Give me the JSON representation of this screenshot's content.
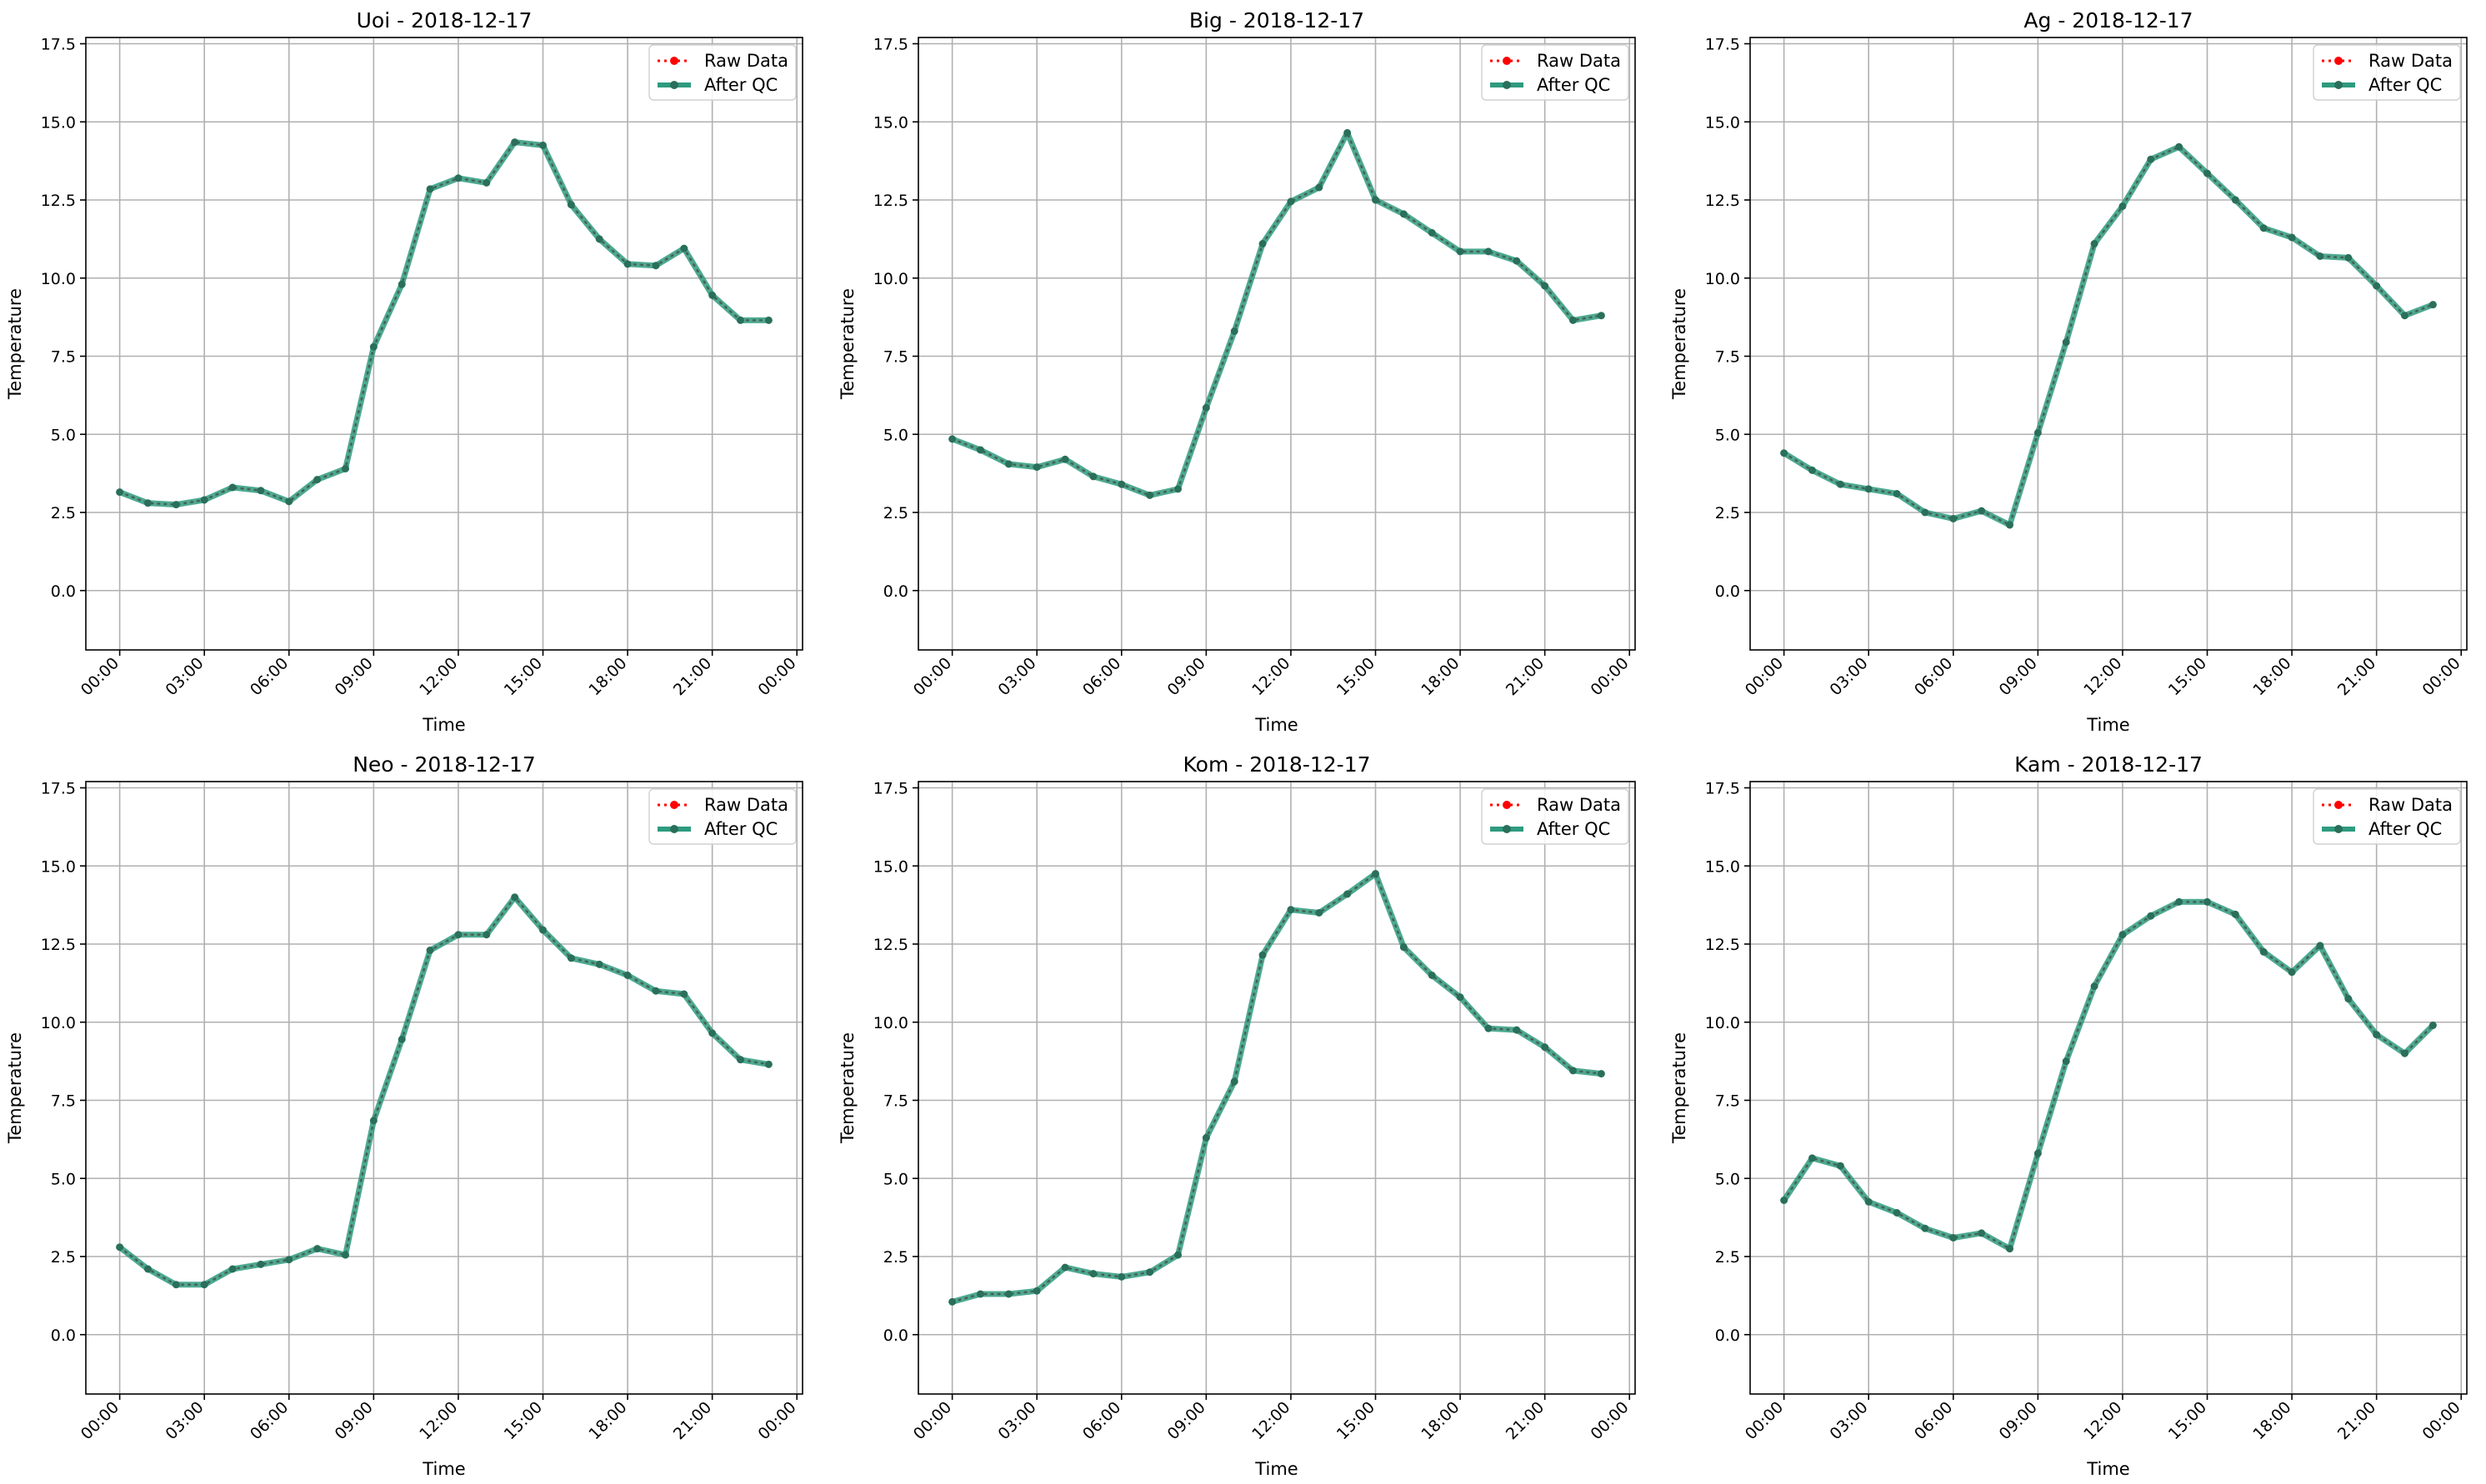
{
  "figure": {
    "xlabel": "Time",
    "ylabel": "Temperature",
    "legend": [
      "Raw Data",
      "After QC"
    ]
  },
  "colors": {
    "raw": "#ff0000",
    "after_qc": "#2e9b7f",
    "grid": "#b0b0b0",
    "axis": "#000000"
  },
  "chart_data": [
    {
      "type": "line",
      "title": "Uoi - 2018-12-17",
      "xlabel": "Time",
      "ylabel": "Temperature",
      "xlim": [
        "00:00",
        "00:00 (next day)"
      ],
      "ylim": [
        -1.9,
        17.7
      ],
      "yticks": [
        "0.0",
        "2.5",
        "5.0",
        "7.5",
        "10.0",
        "12.5",
        "15.0",
        "17.5"
      ],
      "xticks": [
        "00:00",
        "03:00",
        "06:00",
        "09:00",
        "12:00",
        "15:00",
        "18:00",
        "21:00",
        "00:00"
      ],
      "grid": true,
      "legend_position": "top-right",
      "x": [
        "00:00",
        "01:00",
        "02:00",
        "03:00",
        "04:00",
        "05:00",
        "06:00",
        "07:00",
        "08:00",
        "09:00",
        "10:00",
        "11:00",
        "12:00",
        "13:00",
        "14:00",
        "15:00",
        "16:00",
        "17:00",
        "18:00",
        "19:00",
        "20:00",
        "21:00",
        "22:00",
        "23:00"
      ],
      "series": [
        {
          "name": "Raw Data",
          "values": [
            3.15,
            2.8,
            2.75,
            2.9,
            3.3,
            3.2,
            2.85,
            3.55,
            3.9,
            7.8,
            9.8,
            12.85,
            13.2,
            13.05,
            14.35,
            14.25,
            12.35,
            11.25,
            10.45,
            10.4,
            10.95,
            9.45,
            8.65,
            8.65
          ]
        },
        {
          "name": "After QC",
          "values": [
            3.15,
            2.8,
            2.75,
            2.9,
            3.3,
            3.2,
            2.85,
            3.55,
            3.9,
            7.8,
            9.8,
            12.85,
            13.2,
            13.05,
            14.35,
            14.25,
            12.35,
            11.25,
            10.45,
            10.4,
            10.95,
            9.45,
            8.65,
            8.65
          ]
        }
      ]
    },
    {
      "type": "line",
      "title": "Big - 2018-12-17",
      "xlabel": "Time",
      "ylabel": "Temperature",
      "xlim": [
        "00:00",
        "00:00 (next day)"
      ],
      "ylim": [
        -1.9,
        17.7
      ],
      "yticks": [
        "0.0",
        "2.5",
        "5.0",
        "7.5",
        "10.0",
        "12.5",
        "15.0",
        "17.5"
      ],
      "xticks": [
        "00:00",
        "03:00",
        "06:00",
        "09:00",
        "12:00",
        "15:00",
        "18:00",
        "21:00",
        "00:00"
      ],
      "grid": true,
      "legend_position": "top-right",
      "x": [
        "00:00",
        "01:00",
        "02:00",
        "03:00",
        "04:00",
        "05:00",
        "06:00",
        "07:00",
        "08:00",
        "09:00",
        "10:00",
        "11:00",
        "12:00",
        "13:00",
        "14:00",
        "15:00",
        "16:00",
        "17:00",
        "18:00",
        "19:00",
        "20:00",
        "21:00",
        "22:00",
        "23:00"
      ],
      "series": [
        {
          "name": "Raw Data",
          "values": [
            4.85,
            4.5,
            4.05,
            3.95,
            4.2,
            3.65,
            3.4,
            3.05,
            3.25,
            5.85,
            8.3,
            11.1,
            12.45,
            12.9,
            14.65,
            12.5,
            12.05,
            11.45,
            10.85,
            10.85,
            10.55,
            9.75,
            8.65,
            8.8
          ]
        },
        {
          "name": "After QC",
          "values": [
            4.85,
            4.5,
            4.05,
            3.95,
            4.2,
            3.65,
            3.4,
            3.05,
            3.25,
            5.85,
            8.3,
            11.1,
            12.45,
            12.9,
            14.65,
            12.5,
            12.05,
            11.45,
            10.85,
            10.85,
            10.55,
            9.75,
            8.65,
            8.8
          ]
        }
      ]
    },
    {
      "type": "line",
      "title": "Ag - 2018-12-17",
      "xlabel": "Time",
      "ylabel": "Temperature",
      "xlim": [
        "00:00",
        "00:00 (next day)"
      ],
      "ylim": [
        -1.9,
        17.7
      ],
      "yticks": [
        "0.0",
        "2.5",
        "5.0",
        "7.5",
        "10.0",
        "12.5",
        "15.0",
        "17.5"
      ],
      "xticks": [
        "00:00",
        "03:00",
        "06:00",
        "09:00",
        "12:00",
        "15:00",
        "18:00",
        "21:00",
        "00:00"
      ],
      "grid": true,
      "legend_position": "top-right",
      "x": [
        "00:00",
        "01:00",
        "02:00",
        "03:00",
        "04:00",
        "05:00",
        "06:00",
        "07:00",
        "08:00",
        "09:00",
        "10:00",
        "11:00",
        "12:00",
        "13:00",
        "14:00",
        "15:00",
        "16:00",
        "17:00",
        "18:00",
        "19:00",
        "20:00",
        "21:00",
        "22:00",
        "23:00"
      ],
      "series": [
        {
          "name": "Raw Data",
          "values": [
            4.4,
            3.85,
            3.4,
            3.25,
            3.1,
            2.5,
            2.3,
            2.55,
            2.1,
            5.05,
            7.95,
            11.1,
            12.3,
            13.8,
            14.2,
            13.35,
            12.5,
            11.6,
            11.3,
            10.7,
            10.65,
            9.75,
            8.8,
            9.15
          ]
        },
        {
          "name": "After QC",
          "values": [
            4.4,
            3.85,
            3.4,
            3.25,
            3.1,
            2.5,
            2.3,
            2.55,
            2.1,
            5.05,
            7.95,
            11.1,
            12.3,
            13.8,
            14.2,
            13.35,
            12.5,
            11.6,
            11.3,
            10.7,
            10.65,
            9.75,
            8.8,
            9.15
          ]
        }
      ]
    },
    {
      "type": "line",
      "title": "Neo - 2018-12-17",
      "xlabel": "Time",
      "ylabel": "Temperature",
      "xlim": [
        "00:00",
        "00:00 (next day)"
      ],
      "ylim": [
        -1.9,
        17.7
      ],
      "yticks": [
        "0.0",
        "2.5",
        "5.0",
        "7.5",
        "10.0",
        "12.5",
        "15.0",
        "17.5"
      ],
      "xticks": [
        "00:00",
        "03:00",
        "06:00",
        "09:00",
        "12:00",
        "15:00",
        "18:00",
        "21:00",
        "00:00"
      ],
      "grid": true,
      "legend_position": "top-right",
      "x": [
        "00:00",
        "01:00",
        "02:00",
        "03:00",
        "04:00",
        "05:00",
        "06:00",
        "07:00",
        "08:00",
        "09:00",
        "10:00",
        "11:00",
        "12:00",
        "13:00",
        "14:00",
        "15:00",
        "16:00",
        "17:00",
        "18:00",
        "19:00",
        "20:00",
        "21:00",
        "22:00",
        "23:00"
      ],
      "series": [
        {
          "name": "Raw Data",
          "values": [
            2.8,
            2.1,
            1.6,
            1.6,
            2.1,
            2.25,
            2.4,
            2.75,
            2.55,
            6.85,
            9.45,
            12.3,
            12.8,
            12.8,
            14.0,
            12.95,
            12.05,
            11.85,
            11.5,
            11.0,
            10.9,
            9.65,
            8.8,
            8.65
          ]
        },
        {
          "name": "After QC",
          "values": [
            2.8,
            2.1,
            1.6,
            1.6,
            2.1,
            2.25,
            2.4,
            2.75,
            2.55,
            6.85,
            9.45,
            12.3,
            12.8,
            12.8,
            14.0,
            12.95,
            12.05,
            11.85,
            11.5,
            11.0,
            10.9,
            9.65,
            8.8,
            8.65
          ]
        }
      ]
    },
    {
      "type": "line",
      "title": "Kom - 2018-12-17",
      "xlabel": "Time",
      "ylabel": "Temperature",
      "xlim": [
        "00:00",
        "00:00 (next day)"
      ],
      "ylim": [
        -1.9,
        17.7
      ],
      "yticks": [
        "0.0",
        "2.5",
        "5.0",
        "7.5",
        "10.0",
        "12.5",
        "15.0",
        "17.5"
      ],
      "xticks": [
        "00:00",
        "03:00",
        "06:00",
        "09:00",
        "12:00",
        "15:00",
        "18:00",
        "21:00",
        "00:00"
      ],
      "grid": true,
      "legend_position": "top-right",
      "x": [
        "00:00",
        "01:00",
        "02:00",
        "03:00",
        "04:00",
        "05:00",
        "06:00",
        "07:00",
        "08:00",
        "09:00",
        "10:00",
        "11:00",
        "12:00",
        "13:00",
        "14:00",
        "15:00",
        "16:00",
        "17:00",
        "18:00",
        "19:00",
        "20:00",
        "21:00",
        "22:00",
        "23:00"
      ],
      "series": [
        {
          "name": "Raw Data",
          "values": [
            1.05,
            1.3,
            1.3,
            1.4,
            2.15,
            1.95,
            1.85,
            2.0,
            2.55,
            6.3,
            8.1,
            12.15,
            13.6,
            13.5,
            14.1,
            14.75,
            12.4,
            11.5,
            10.8,
            9.8,
            9.75,
            9.2,
            8.45,
            8.35
          ]
        },
        {
          "name": "After QC",
          "values": [
            1.05,
            1.3,
            1.3,
            1.4,
            2.15,
            1.95,
            1.85,
            2.0,
            2.55,
            6.3,
            8.1,
            12.15,
            13.6,
            13.5,
            14.1,
            14.75,
            12.4,
            11.5,
            10.8,
            9.8,
            9.75,
            9.2,
            8.45,
            8.35
          ]
        }
      ]
    },
    {
      "type": "line",
      "title": "Kam - 2018-12-17",
      "xlabel": "Time",
      "ylabel": "Temperature",
      "xlim": [
        "00:00",
        "00:00 (next day)"
      ],
      "ylim": [
        -1.9,
        17.7
      ],
      "yticks": [
        "0.0",
        "2.5",
        "5.0",
        "7.5",
        "10.0",
        "12.5",
        "15.0",
        "17.5"
      ],
      "xticks": [
        "00:00",
        "03:00",
        "06:00",
        "09:00",
        "12:00",
        "15:00",
        "18:00",
        "21:00",
        "00:00"
      ],
      "grid": true,
      "legend_position": "top-right",
      "x": [
        "00:00",
        "01:00",
        "02:00",
        "03:00",
        "04:00",
        "05:00",
        "06:00",
        "07:00",
        "08:00",
        "09:00",
        "10:00",
        "11:00",
        "12:00",
        "13:00",
        "14:00",
        "15:00",
        "16:00",
        "17:00",
        "18:00",
        "19:00",
        "20:00",
        "21:00",
        "22:00",
        "23:00"
      ],
      "series": [
        {
          "name": "Raw Data",
          "values": [
            4.3,
            5.65,
            5.4,
            4.25,
            3.9,
            3.4,
            3.1,
            3.25,
            2.75,
            5.8,
            8.75,
            11.15,
            12.8,
            13.4,
            13.85,
            13.85,
            13.45,
            12.25,
            11.6,
            12.45,
            10.75,
            9.6,
            9.0,
            9.9
          ]
        },
        {
          "name": "After QC",
          "values": [
            4.3,
            5.65,
            5.4,
            4.25,
            3.9,
            3.4,
            3.1,
            3.25,
            2.75,
            5.8,
            8.75,
            11.15,
            12.8,
            13.4,
            13.85,
            13.85,
            13.45,
            12.25,
            11.6,
            12.45,
            10.75,
            9.6,
            9.0,
            9.9
          ]
        }
      ]
    }
  ]
}
